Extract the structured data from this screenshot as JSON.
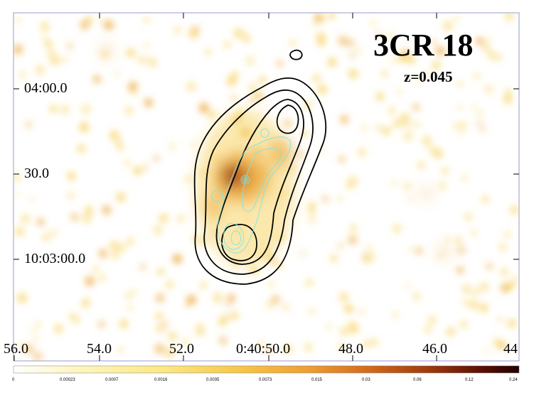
{
  "figure": {
    "title": "3CR 18",
    "subtitle": "z=0.045"
  },
  "axes": {
    "y_ticks": [
      "04:00.0",
      "30.0",
      "10:03:00.0"
    ],
    "x_ticks": [
      "56.0",
      "54.0",
      "52.0",
      "0:40:50.0",
      "48.0",
      "46.0",
      "44"
    ]
  },
  "colorbar": {
    "labels": [
      "0",
      "0.00023",
      "0.0007",
      "0.0016",
      "0.0035",
      "0.0073",
      "0.015",
      "0.03",
      "0.06",
      "0.12",
      "0.24"
    ],
    "colors": [
      "#ffffff",
      "#fdf6c2",
      "#fbe783",
      "#f6c647",
      "#ee9f34",
      "#d26c1d",
      "#9e3b0d",
      "#5c1204",
      "#250000"
    ]
  },
  "contours": {
    "radio_color": "#000000",
    "optical_color": "#7fe5e5"
  },
  "emission_colors": {
    "faint": "#f7d56a",
    "mid": "#eba83c",
    "bright": "#b8501b",
    "core": "#6e1c08"
  }
}
